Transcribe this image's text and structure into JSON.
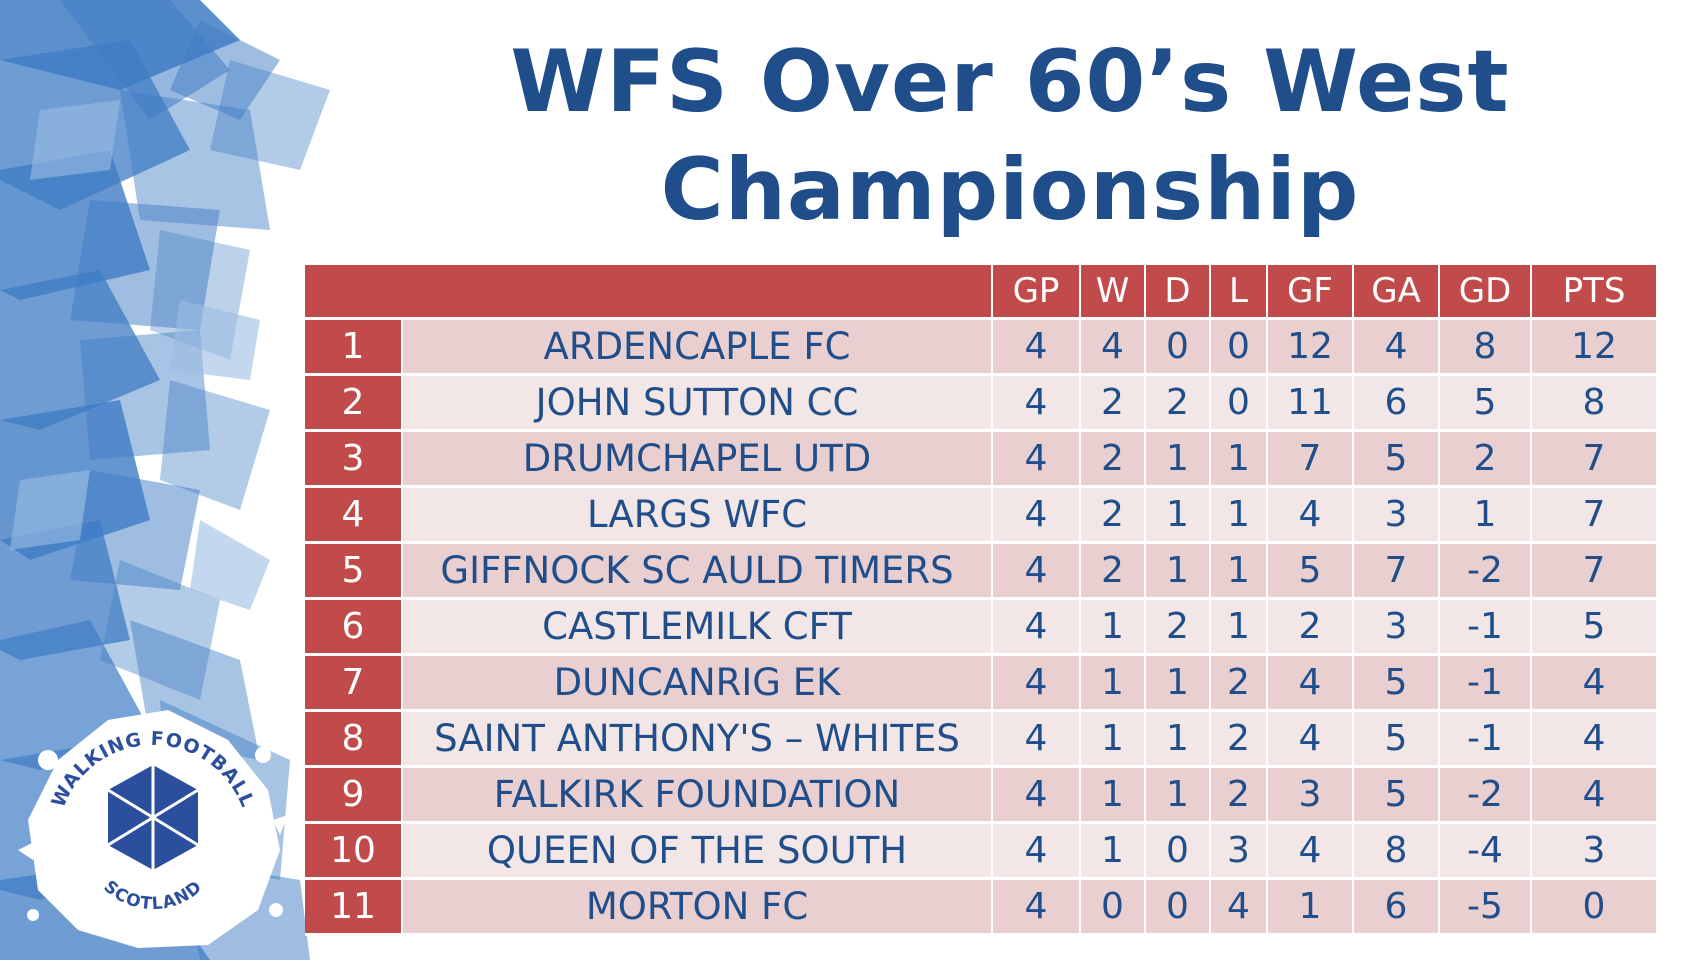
{
  "title": {
    "line1": "WFS Over 60’s West",
    "line2": "Championship"
  },
  "table": {
    "headers": [
      "GP",
      "W",
      "D",
      "L",
      "GF",
      "GA",
      "GD",
      "PTS"
    ],
    "rows": [
      {
        "pos": "1",
        "team": "ARDENCAPLE FC",
        "gp": "4",
        "w": "4",
        "d": "0",
        "l": "0",
        "gf": "12",
        "ga": "4",
        "gd": "8",
        "pts": "12"
      },
      {
        "pos": "2",
        "team": "JOHN SUTTON CC",
        "gp": "4",
        "w": "2",
        "d": "2",
        "l": "0",
        "gf": "11",
        "ga": "6",
        "gd": "5",
        "pts": "8"
      },
      {
        "pos": "3",
        "team": "DRUMCHAPEL UTD",
        "gp": "4",
        "w": "2",
        "d": "1",
        "l": "1",
        "gf": "7",
        "ga": "5",
        "gd": "2",
        "pts": "7"
      },
      {
        "pos": "4",
        "team": "LARGS WFC",
        "gp": "4",
        "w": "2",
        "d": "1",
        "l": "1",
        "gf": "4",
        "ga": "3",
        "gd": "1",
        "pts": "7"
      },
      {
        "pos": "5",
        "team": "GIFFNOCK SC AULD TIMERS",
        "gp": "4",
        "w": "2",
        "d": "1",
        "l": "1",
        "gf": "5",
        "ga": "7",
        "gd": "-2",
        "pts": "7"
      },
      {
        "pos": "6",
        "team": "CASTLEMILK CFT",
        "gp": "4",
        "w": "1",
        "d": "2",
        "l": "1",
        "gf": "2",
        "ga": "3",
        "gd": "-1",
        "pts": "5"
      },
      {
        "pos": "7",
        "team": "DUNCANRIG EK",
        "gp": "4",
        "w": "1",
        "d": "1",
        "l": "2",
        "gf": "4",
        "ga": "5",
        "gd": "-1",
        "pts": "4"
      },
      {
        "pos": "8",
        "team": "SAINT ANTHONY'S – WHITES",
        "gp": "4",
        "w": "1",
        "d": "1",
        "l": "2",
        "gf": "4",
        "ga": "5",
        "gd": "-1",
        "pts": "4"
      },
      {
        "pos": "9",
        "team": "FALKIRK FOUNDATION",
        "gp": "4",
        "w": "1",
        "d": "1",
        "l": "2",
        "gf": "3",
        "ga": "5",
        "gd": "-2",
        "pts": "4"
      },
      {
        "pos": "10",
        "team": "QUEEN OF THE SOUTH",
        "gp": "4",
        "w": "1",
        "d": "0",
        "l": "3",
        "gf": "4",
        "ga": "8",
        "gd": "-4",
        "pts": "3"
      },
      {
        "pos": "11",
        "team": "MORTON FC",
        "gp": "4",
        "w": "0",
        "d": "0",
        "l": "4",
        "gf": "1",
        "ga": "6",
        "gd": "-5",
        "pts": "0"
      }
    ]
  },
  "logo": {
    "top_text": "WALKING FOOTBALL",
    "bottom_text": "SCOTLAND"
  },
  "colors": {
    "title": "#1f4e8a",
    "header_bg": "#c14b4a",
    "row_odd": "#e9cfd0",
    "row_even": "#f3e6e7",
    "deco_blue": "#3f7cc4"
  }
}
